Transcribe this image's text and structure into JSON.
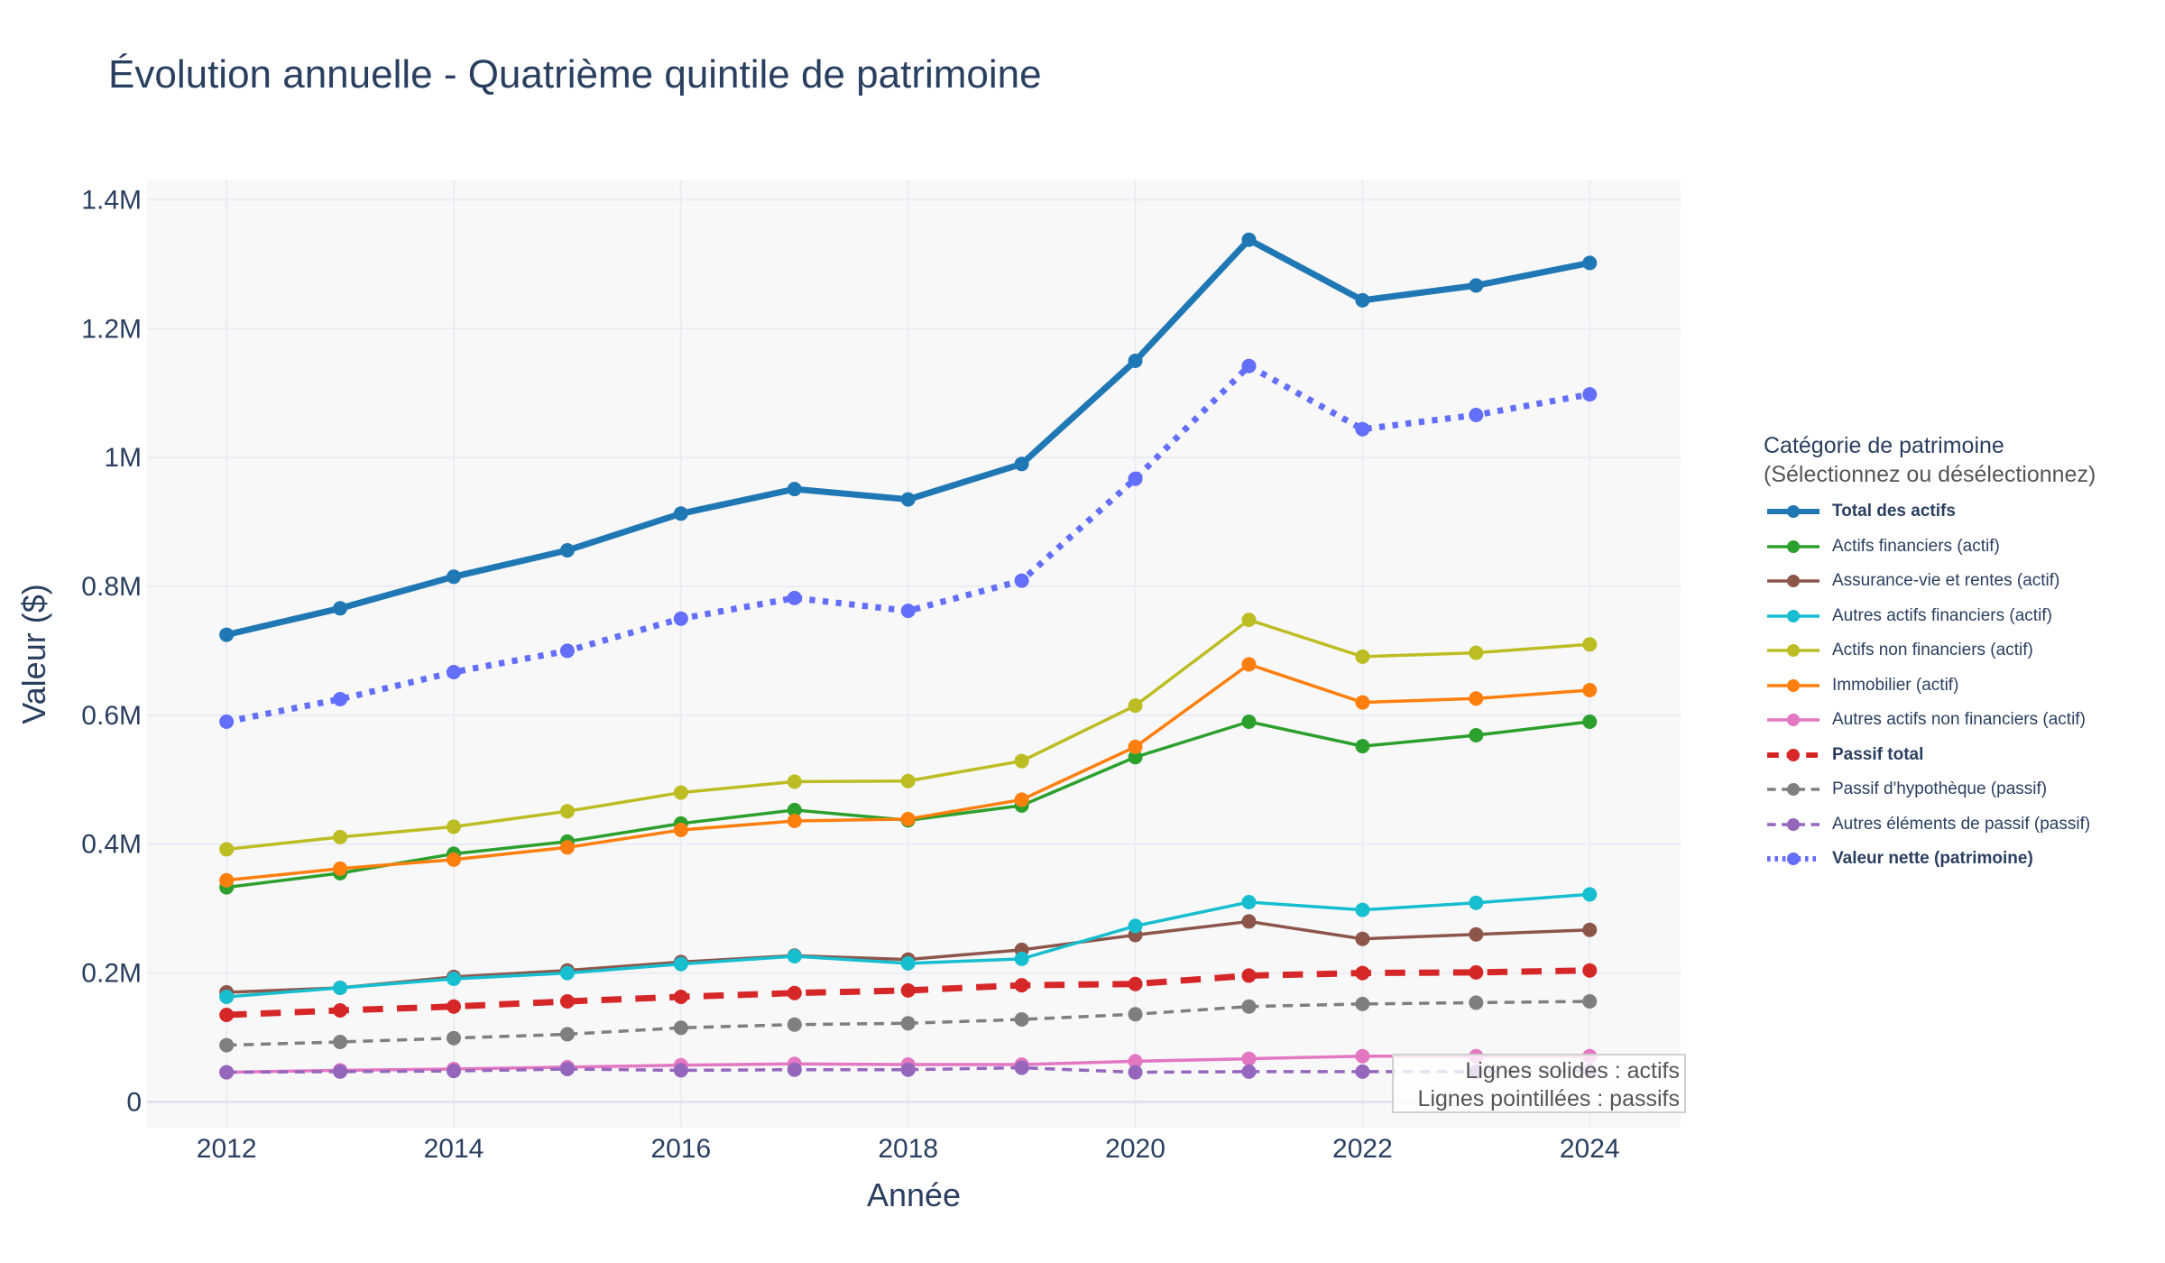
{
  "chart_data": {
    "type": "line",
    "title": "Évolution annuelle - Quatrième quintile de patrimoine",
    "xlabel": "Année",
    "ylabel": "Valeur ($)",
    "x": [
      2012,
      2013,
      2014,
      2015,
      2016,
      2017,
      2018,
      2019,
      2020,
      2021,
      2022,
      2023,
      2024
    ],
    "xlim": [
      2011.3,
      2024.8
    ],
    "ylim": [
      -40000,
      1430000
    ],
    "x_ticks": [
      2012,
      2014,
      2016,
      2018,
      2020,
      2022,
      2024
    ],
    "x_tick_labels": [
      "2012",
      "2014",
      "2016",
      "2018",
      "2020",
      "2022",
      "2024"
    ],
    "y_ticks": [
      0,
      200000,
      400000,
      600000,
      800000,
      1000000,
      1200000,
      1400000
    ],
    "y_tick_labels": [
      "0",
      "0.2M",
      "0.4M",
      "0.6M",
      "0.8M",
      "1M",
      "1.2M",
      "1.4M"
    ],
    "legend_title": "Catégorie de patrimoine",
    "legend_subtitle": "(Sélectionnez ou désélectionnez)",
    "legend_position": "right",
    "grid": true,
    "series": [
      {
        "name": "Total des actifs",
        "color": "#1f77b4",
        "dash": "solid",
        "bold": true,
        "width": 7,
        "values": [
          725000,
          766000,
          815000,
          856000,
          913000,
          951000,
          935000,
          990000,
          1150000,
          1338000,
          1244000,
          1267000,
          1302000
        ]
      },
      {
        "name": "Actifs financiers (actif)",
        "color": "#2ca02c",
        "dash": "solid",
        "bold": false,
        "width": 3.5,
        "values": [
          333000,
          355000,
          385000,
          404000,
          432000,
          453000,
          437000,
          460000,
          535000,
          590000,
          552000,
          569000,
          590000
        ]
      },
      {
        "name": "Assurance-vie et rentes (actif)",
        "color": "#8c564b",
        "dash": "solid",
        "bold": false,
        "width": 3.5,
        "values": [
          170000,
          177000,
          194000,
          204000,
          217000,
          227000,
          221000,
          236000,
          259000,
          280000,
          253000,
          260000,
          267000
        ]
      },
      {
        "name": "Autres actifs financiers (actif)",
        "color": "#17becf",
        "dash": "solid",
        "bold": false,
        "width": 3.5,
        "values": [
          163000,
          177000,
          191000,
          200000,
          214000,
          226000,
          215000,
          222000,
          273000,
          310000,
          298000,
          309000,
          322000
        ]
      },
      {
        "name": "Actifs non financiers (actif)",
        "color": "#bcbd22",
        "dash": "solid",
        "bold": false,
        "width": 3.5,
        "values": [
          392000,
          411000,
          427000,
          451000,
          480000,
          497000,
          498000,
          529000,
          615000,
          748000,
          691000,
          697000,
          710000
        ]
      },
      {
        "name": "Immobilier (actif)",
        "color": "#ff7f0e",
        "dash": "solid",
        "bold": false,
        "width": 3.5,
        "values": [
          344000,
          362000,
          376000,
          395000,
          422000,
          436000,
          439000,
          469000,
          551000,
          679000,
          620000,
          626000,
          639000
        ]
      },
      {
        "name": "Autres actifs non financiers (actif)",
        "color": "#e377c2",
        "dash": "solid",
        "bold": false,
        "width": 3.5,
        "values": [
          46000,
          49000,
          51000,
          54000,
          57000,
          59000,
          58000,
          58000,
          63000,
          67000,
          71000,
          71000,
          71000
        ]
      },
      {
        "name": "Passif total",
        "color": "#d62728",
        "dash": "dash",
        "bold": true,
        "width": 7,
        "values": [
          135000,
          142000,
          148000,
          156000,
          163000,
          169000,
          173000,
          181000,
          183000,
          196000,
          200000,
          201000,
          204000
        ]
      },
      {
        "name": "Passif d'hypothèque (passif)",
        "color": "#7f7f7f",
        "dash": "dash",
        "bold": false,
        "width": 3.5,
        "values": [
          88000,
          93000,
          99000,
          105000,
          115000,
          120000,
          122000,
          128000,
          136000,
          148000,
          152000,
          154000,
          156000
        ]
      },
      {
        "name": "Autres éléments de passif (passif)",
        "color": "#9467bd",
        "dash": "dash",
        "bold": false,
        "width": 3.5,
        "values": [
          46000,
          47000,
          48000,
          51000,
          49000,
          50000,
          50000,
          53000,
          46000,
          47000,
          47000,
          47000,
          48000
        ]
      },
      {
        "name": "Valeur nette (patrimoine)",
        "color": "#636efa",
        "dash": "dot",
        "bold": true,
        "width": 7,
        "values": [
          590000,
          625000,
          667000,
          700000,
          750000,
          782000,
          762000,
          809000,
          967000,
          1142000,
          1044000,
          1066000,
          1098000
        ]
      }
    ],
    "annotations": [
      "Lignes solides : actifs",
      "Lignes pointillées : passifs"
    ]
  }
}
